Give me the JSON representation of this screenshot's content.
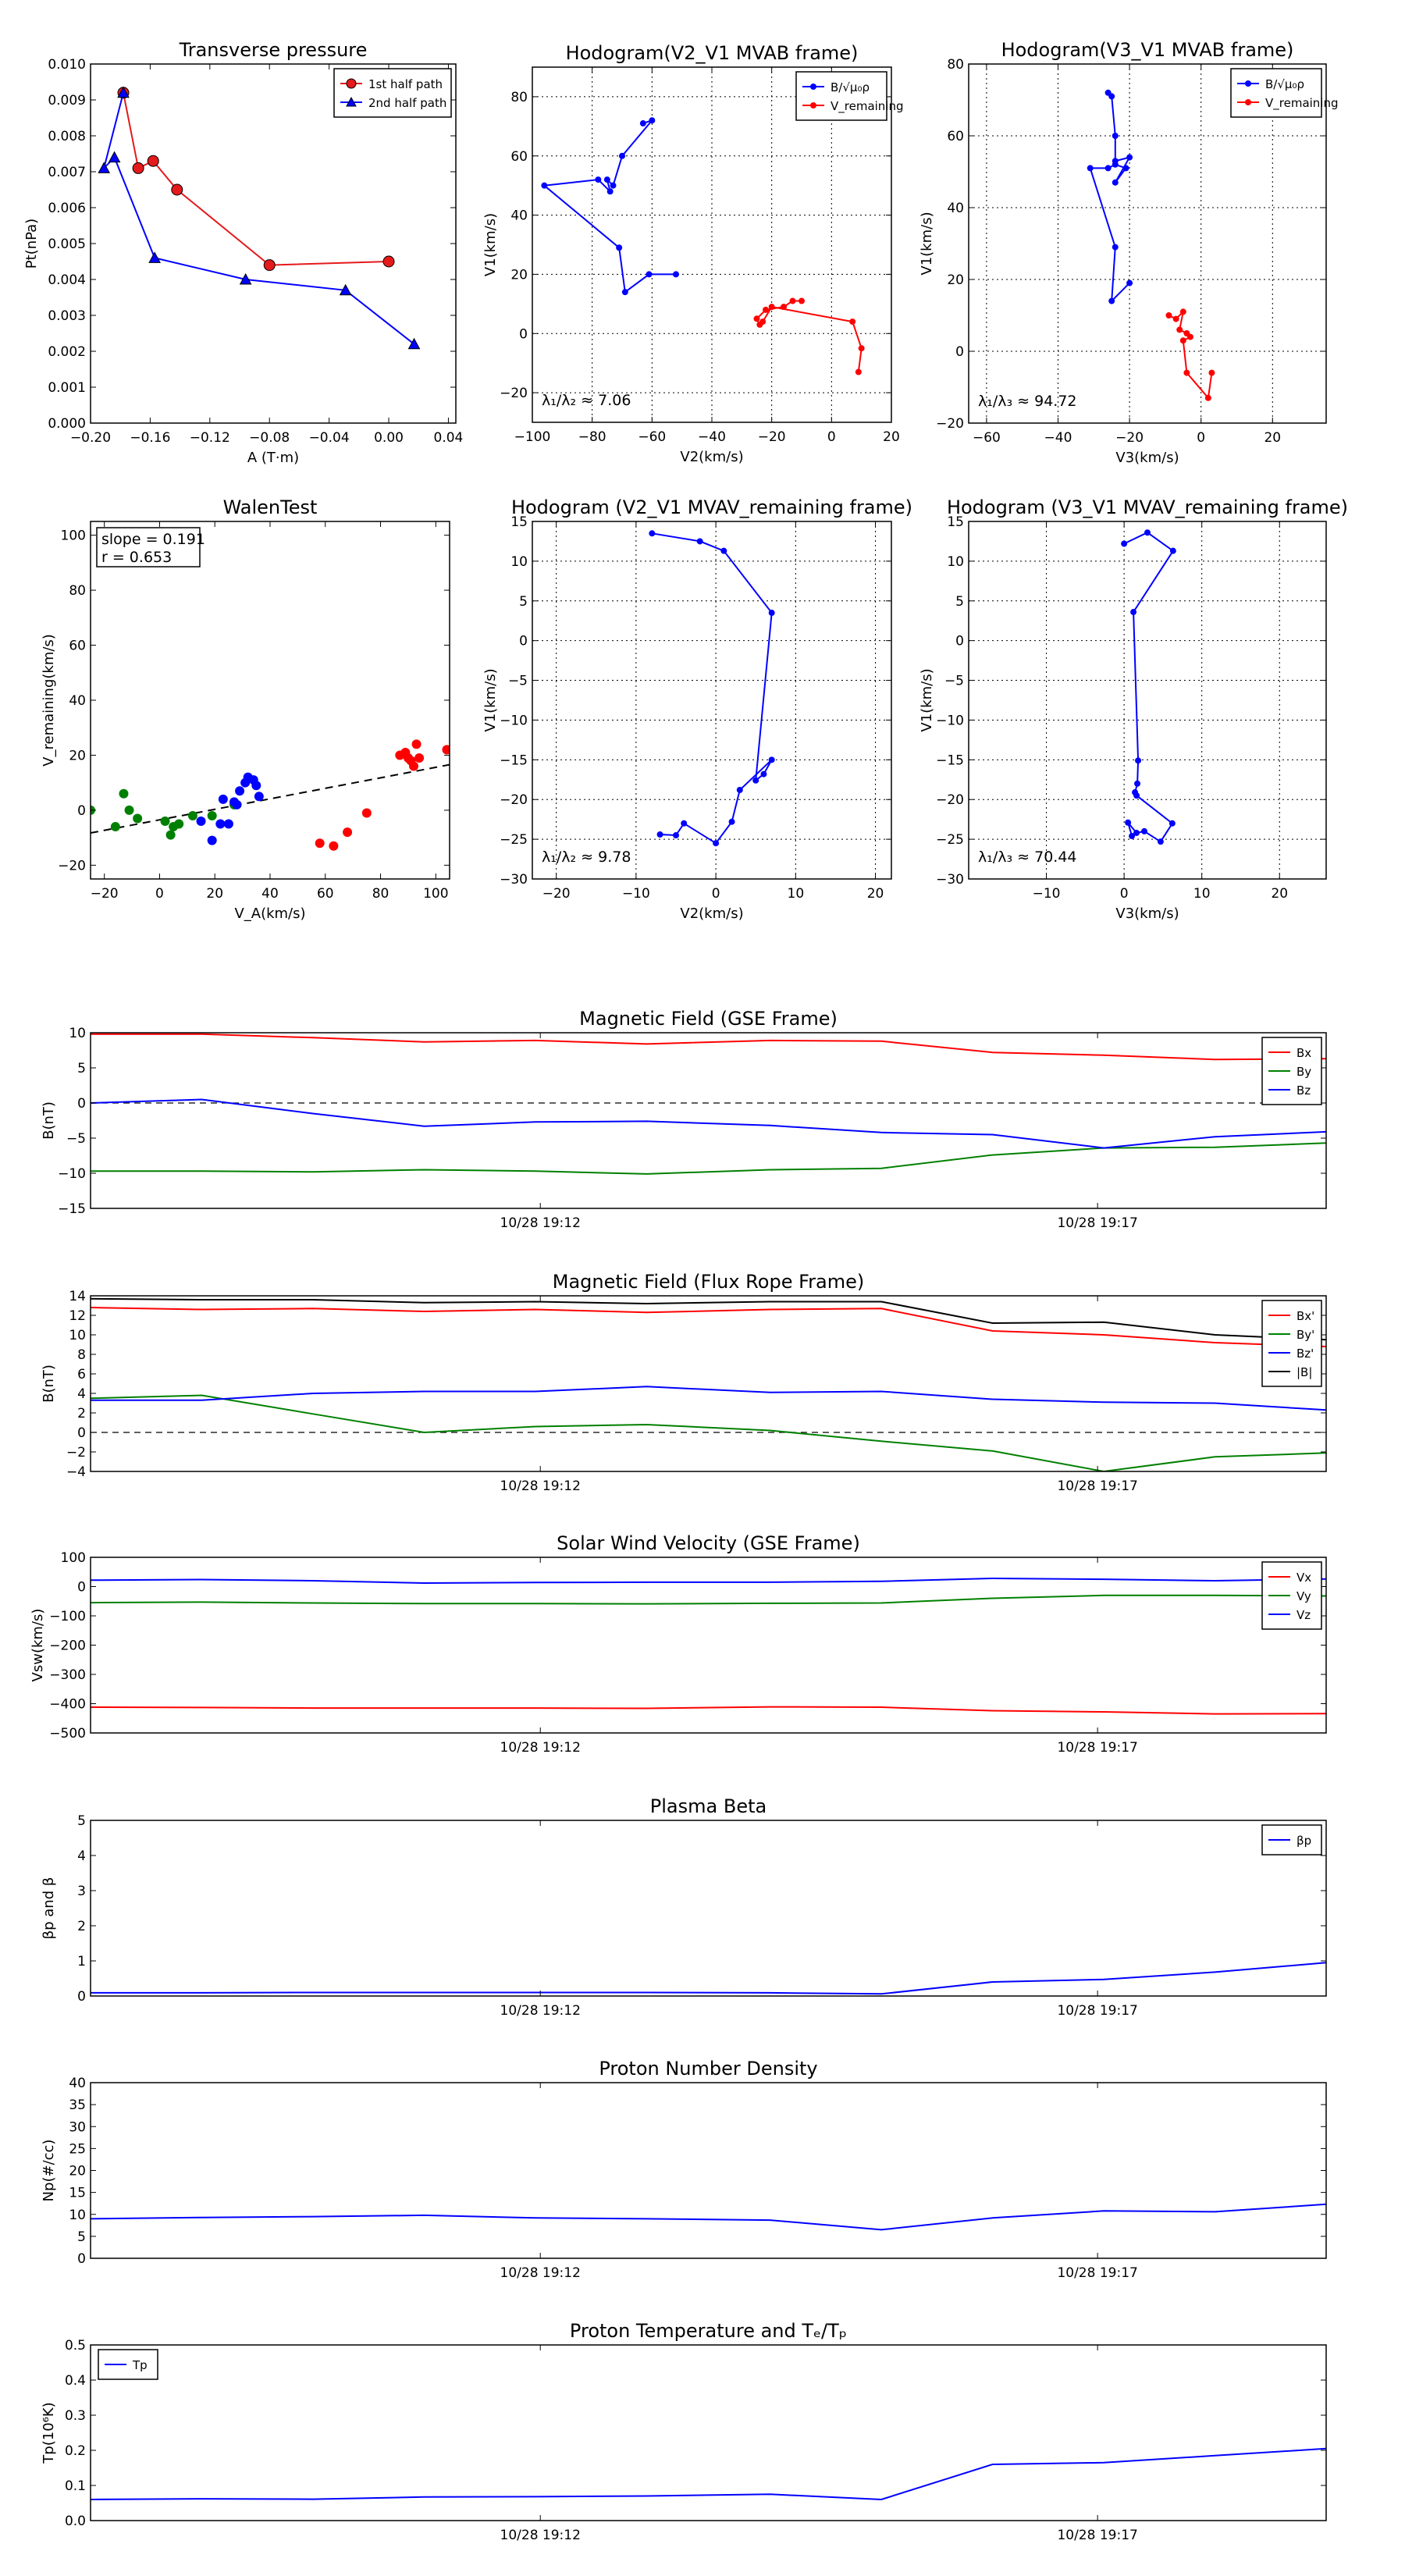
{
  "chart_data": [
    {
      "id": "tp",
      "type": "scatter",
      "title": "Transverse pressure",
      "xlabel": "A (T·m)",
      "ylabel": "Pt(nPa)",
      "xlim": [
        -0.2,
        0.045
      ],
      "ylim": [
        0,
        0.01
      ],
      "xticks": [
        -0.2,
        -0.16,
        -0.12,
        -0.08,
        -0.04,
        0.0,
        0.04
      ],
      "xticklabels": [
        "−0.20",
        "−0.16",
        "−0.12",
        "−0.08",
        "−0.04",
        "0.00",
        "0.04"
      ],
      "yticks": [
        0,
        0.001,
        0.002,
        0.003,
        0.004,
        0.005,
        0.006,
        0.007,
        0.008,
        0.009,
        0.01
      ],
      "yticklabels": [
        "0.000",
        "0.001",
        "0.002",
        "0.003",
        "0.004",
        "0.005",
        "0.006",
        "0.007",
        "0.008",
        "0.009",
        "0.010"
      ],
      "grid": false,
      "legend": "upper-right",
      "series": [
        {
          "name": "1st half path",
          "color": "#e41a1c",
          "marker": "circle",
          "x": [
            -0.178,
            -0.168,
            -0.158,
            -0.142,
            -0.08,
            0.0
          ],
          "y": [
            0.0092,
            0.0071,
            0.0073,
            0.0065,
            0.0044,
            0.0045
          ]
        },
        {
          "name": "2nd half path",
          "color": "#0000ff",
          "marker": "triangle",
          "x": [
            -0.178,
            -0.191,
            -0.184,
            -0.157,
            -0.096,
            -0.029,
            0.017
          ],
          "y": [
            0.0092,
            0.0071,
            0.0074,
            0.0046,
            0.004,
            0.0037,
            0.0022
          ]
        }
      ]
    },
    {
      "id": "h1",
      "type": "line",
      "title": "Hodogram(V2_V1 MVAB frame)",
      "xlabel": "V2(km/s)",
      "ylabel": "V1(km/s)",
      "xlim": [
        -100,
        20
      ],
      "ylim": [
        -30,
        90
      ],
      "xticks": [
        -100,
        -80,
        -60,
        -40,
        -20,
        0,
        20
      ],
      "yticks": [
        -20,
        0,
        20,
        40,
        60,
        80
      ],
      "grid": true,
      "legend": "upper-right",
      "annotation": "λ₁/λ₂ ≈ 7.06",
      "series": [
        {
          "name": "B/√μ₀ρ",
          "color": "#0000ff",
          "x": [
            -63,
            -60,
            -70,
            -73,
            -75,
            -74,
            -78,
            -96,
            -71,
            -69,
            -61,
            -52
          ],
          "y": [
            71,
            72,
            60,
            50,
            52,
            48,
            52,
            50,
            29,
            14,
            20,
            20
          ]
        },
        {
          "name": "V_remaining",
          "color": "#ff0000",
          "x": [
            -10,
            -13,
            -16,
            -22,
            -25,
            -24,
            -23,
            -20,
            7,
            10,
            9
          ],
          "y": [
            11,
            11,
            9,
            8,
            5,
            3,
            4,
            9,
            4,
            -5,
            -13
          ]
        }
      ]
    },
    {
      "id": "h2",
      "type": "line",
      "title": "Hodogram(V3_V1 MVAB frame)",
      "xlabel": "V3(km/s)",
      "ylabel": "V1(km/s)",
      "xlim": [
        -65,
        35
      ],
      "ylim": [
        -20,
        80
      ],
      "xticks": [
        -60,
        -40,
        -20,
        0,
        20
      ],
      "yticks": [
        -20,
        0,
        20,
        40,
        60,
        80
      ],
      "grid": true,
      "legend": "upper-right",
      "annotation": "λ₁/λ₃ ≈ 94.72",
      "series": [
        {
          "name": "B/√μ₀ρ",
          "color": "#0000ff",
          "x": [
            -26,
            -25,
            -24,
            -24,
            -20,
            -24,
            -21,
            -24,
            -26,
            -31,
            -24,
            -25,
            -20
          ],
          "y": [
            72,
            71,
            60,
            53,
            54,
            47,
            51,
            52,
            51,
            51,
            29,
            14,
            19
          ]
        },
        {
          "name": "V_remaining",
          "color": "#ff0000",
          "x": [
            -9,
            -7,
            -5,
            -6,
            -4,
            -3,
            -5,
            -4,
            2,
            3
          ],
          "y": [
            10,
            9,
            11,
            6,
            5,
            4,
            3,
            -6,
            -13,
            -6
          ]
        }
      ]
    },
    {
      "id": "walen",
      "type": "scatter",
      "title": "WalenTest",
      "xlabel": "V_A(km/s)",
      "ylabel": "V_remaining(km/s)",
      "xlim": [
        -25,
        105
      ],
      "ylim": [
        -25,
        105
      ],
      "xticks": [
        -20,
        0,
        20,
        40,
        60,
        80,
        100
      ],
      "yticks": [
        -20,
        0,
        20,
        40,
        60,
        80,
        100
      ],
      "grid": false,
      "fit": {
        "slope": 0.191,
        "intercept": -3.5,
        "r": 0.653
      },
      "annotation_lines": [
        "slope = 0.191",
        "r = 0.653"
      ],
      "series": [
        {
          "color": "#008000",
          "x": [
            -25,
            -16,
            -13,
            -11,
            -8,
            2,
            4,
            5,
            7,
            12,
            19,
            27
          ],
          "y": [
            0,
            -6,
            6,
            0,
            -3,
            -4,
            -9,
            -6,
            -5,
            -2,
            -2,
            2
          ]
        },
        {
          "color": "#0000ff",
          "x": [
            15,
            19,
            22,
            23,
            25,
            27,
            28,
            29,
            31,
            32,
            34,
            35,
            36
          ],
          "y": [
            -4,
            -11,
            -5,
            4,
            -5,
            3,
            2,
            7,
            10,
            12,
            11,
            9,
            5
          ]
        },
        {
          "color": "#ff0000",
          "x": [
            58,
            63,
            68,
            75,
            87,
            89,
            90,
            91,
            92,
            93,
            94,
            104
          ],
          "y": [
            -12,
            -13,
            -8,
            -1,
            20,
            21,
            19,
            18,
            16,
            24,
            19,
            22
          ]
        }
      ]
    },
    {
      "id": "h3",
      "type": "line",
      "title": "Hodogram (V2_V1 MVAV_remaining frame)",
      "xlabel": "V2(km/s)",
      "ylabel": "V1(km/s)",
      "xlim": [
        -23,
        22
      ],
      "ylim": [
        -30,
        15
      ],
      "xticks": [
        -20,
        -10,
        0,
        10,
        20
      ],
      "yticks": [
        -30,
        -25,
        -20,
        -15,
        -10,
        -5,
        0,
        5,
        10,
        15
      ],
      "grid": true,
      "annotation": "λ₁/λ₂ ≈ 9.78",
      "series": [
        {
          "color": "#0000ff",
          "x": [
            -8,
            -2,
            1,
            7,
            5,
            6,
            7,
            3,
            2,
            0,
            -4,
            -5,
            -7
          ],
          "y": [
            13.5,
            12.5,
            11.3,
            3.5,
            -17.6,
            -16.8,
            -15,
            -18.8,
            -22.8,
            -25.5,
            -23,
            -24.5,
            -24.4
          ]
        }
      ]
    },
    {
      "id": "h4",
      "type": "line",
      "title": "Hodogram (V3_V1 MVAV_remaining frame)",
      "xlabel": "V3(km/s)",
      "ylabel": "V1(km/s)",
      "xlim": [
        -20,
        26
      ],
      "ylim": [
        -30,
        15
      ],
      "xticks": [
        -10,
        0,
        10,
        20
      ],
      "yticks": [
        -30,
        -25,
        -20,
        -15,
        -10,
        -5,
        0,
        5,
        10,
        15
      ],
      "grid": true,
      "annotation": "λ₁/λ₃ ≈ 70.44",
      "series": [
        {
          "color": "#0000ff",
          "x": [
            0,
            3,
            6.3,
            1.2,
            1.8,
            1.7,
            1.4,
            1.6,
            6.2,
            4.7,
            2.6,
            1.6,
            0.5,
            1
          ],
          "y": [
            12.2,
            13.6,
            11.3,
            3.6,
            -15.1,
            -18,
            -19.1,
            -19.5,
            -23,
            -25.3,
            -24,
            -24.2,
            -22.9,
            -24.6
          ]
        }
      ]
    },
    {
      "id": "bgse",
      "type": "line",
      "title": "Magnetic Field (GSE Frame)",
      "ylabel": "B(nT)",
      "ylim": [
        -15,
        10
      ],
      "yticks": [
        -15,
        -10,
        -5,
        0,
        5,
        10
      ],
      "xticks": [
        0.364,
        0.815
      ],
      "xticklabels": [
        "10/28 19:12",
        "10/28 19:17"
      ],
      "grid": false,
      "zero_line": true,
      "legend": "upper-right",
      "series": [
        {
          "name": "Bx",
          "color": "#ff0000",
          "x": [
            0,
            0.09,
            0.18,
            0.27,
            0.36,
            0.45,
            0.55,
            0.64,
            0.73,
            0.82,
            0.91,
            1.0
          ],
          "y": [
            9.8,
            9.8,
            9.3,
            8.7,
            8.9,
            8.4,
            8.9,
            8.8,
            7.2,
            6.8,
            6.2,
            6.3
          ]
        },
        {
          "name": "By",
          "color": "#008000",
          "x": [
            0,
            0.09,
            0.18,
            0.27,
            0.36,
            0.45,
            0.55,
            0.64,
            0.73,
            0.82,
            0.91,
            1.0
          ],
          "y": [
            -9.7,
            -9.7,
            -9.8,
            -9.5,
            -9.7,
            -10.1,
            -9.5,
            -9.3,
            -7.4,
            -6.4,
            -6.3,
            -5.7
          ]
        },
        {
          "name": "Bz",
          "color": "#0000ff",
          "x": [
            0,
            0.09,
            0.18,
            0.27,
            0.36,
            0.45,
            0.55,
            0.64,
            0.73,
            0.82,
            0.91,
            1.0
          ],
          "y": [
            0,
            0.5,
            -1.5,
            -3.3,
            -2.7,
            -2.6,
            -3.2,
            -4.2,
            -4.5,
            -6.4,
            -4.8,
            -4.1
          ]
        }
      ]
    },
    {
      "id": "bfr",
      "type": "line",
      "title": "Magnetic Field (Flux Rope Frame)",
      "ylabel": "B(nT)",
      "ylim": [
        -4,
        14
      ],
      "yticks": [
        -4,
        -2,
        0,
        2,
        4,
        6,
        8,
        10,
        12,
        14
      ],
      "xticks": [
        0.364,
        0.815
      ],
      "xticklabels": [
        "10/28 19:12",
        "10/28 19:17"
      ],
      "grid": false,
      "zero_line": true,
      "legend": "upper-right",
      "series": [
        {
          "name": "Bx'",
          "color": "#ff0000",
          "x": [
            0,
            0.09,
            0.18,
            0.27,
            0.36,
            0.45,
            0.55,
            0.64,
            0.73,
            0.82,
            0.91,
            1.0
          ],
          "y": [
            12.8,
            12.6,
            12.7,
            12.4,
            12.6,
            12.3,
            12.6,
            12.7,
            10.4,
            10.0,
            9.2,
            8.8
          ]
        },
        {
          "name": "By'",
          "color": "#008000",
          "x": [
            0,
            0.09,
            0.18,
            0.27,
            0.36,
            0.45,
            0.55,
            0.64,
            0.73,
            0.82,
            0.91,
            1.0
          ],
          "y": [
            3.5,
            3.8,
            1.9,
            0.0,
            0.6,
            0.8,
            0.2,
            -0.9,
            -1.9,
            -4.0,
            -2.5,
            -2.1
          ]
        },
        {
          "name": "Bz'",
          "color": "#0000ff",
          "x": [
            0,
            0.09,
            0.18,
            0.27,
            0.36,
            0.45,
            0.55,
            0.64,
            0.73,
            0.82,
            0.91,
            1.0
          ],
          "y": [
            3.3,
            3.3,
            4.0,
            4.2,
            4.2,
            4.7,
            4.1,
            4.2,
            3.4,
            3.1,
            3.0,
            2.3
          ]
        },
        {
          "name": "|B|",
          "color": "#000000",
          "x": [
            0,
            0.09,
            0.18,
            0.27,
            0.36,
            0.45,
            0.55,
            0.64,
            0.73,
            0.82,
            0.91,
            1.0
          ],
          "y": [
            13.7,
            13.6,
            13.6,
            13.3,
            13.4,
            13.2,
            13.4,
            13.4,
            11.2,
            11.3,
            10.0,
            9.5
          ]
        }
      ]
    },
    {
      "id": "vsw",
      "type": "line",
      "title": "Solar Wind Velocity (GSE Frame)",
      "ylabel": "Vsw(km/s)",
      "ylim": [
        -500,
        100
      ],
      "yticks": [
        -500,
        -400,
        -300,
        -200,
        -100,
        0,
        100
      ],
      "yticklabels": [
        "−500",
        "−400",
        "−300",
        "−200",
        "−100",
        "0",
        "100"
      ],
      "xticks": [
        0.364,
        0.815
      ],
      "xticklabels": [
        "10/28 19:12",
        "10/28 19:17"
      ],
      "grid": false,
      "legend": "upper-right",
      "series": [
        {
          "name": "Vx",
          "color": "#ff0000",
          "x": [
            0,
            0.09,
            0.18,
            0.27,
            0.36,
            0.45,
            0.55,
            0.64,
            0.73,
            0.82,
            0.91,
            1.0
          ],
          "y": [
            -412,
            -413,
            -415,
            -415,
            -415,
            -416,
            -411,
            -412,
            -424,
            -428,
            -435,
            -434
          ]
        },
        {
          "name": "Vy",
          "color": "#008000",
          "x": [
            0,
            0.09,
            0.18,
            0.27,
            0.36,
            0.45,
            0.55,
            0.64,
            0.73,
            0.82,
            0.91,
            1.0
          ],
          "y": [
            -55,
            -53,
            -56,
            -58,
            -58,
            -59,
            -57,
            -56,
            -40,
            -30,
            -30,
            -32
          ]
        },
        {
          "name": "Vz",
          "color": "#0000ff",
          "x": [
            0,
            0.09,
            0.18,
            0.27,
            0.36,
            0.45,
            0.55,
            0.64,
            0.73,
            0.82,
            0.91,
            1.0
          ],
          "y": [
            22,
            24,
            20,
            12,
            14,
            15,
            15,
            18,
            28,
            25,
            20,
            26
          ]
        }
      ]
    },
    {
      "id": "beta",
      "type": "line",
      "title": "Plasma Beta",
      "ylabel": "βp and β",
      "ylim": [
        0,
        5
      ],
      "yticks": [
        0,
        1,
        2,
        3,
        4,
        5
      ],
      "xticks": [
        0.364,
        0.815
      ],
      "xticklabels": [
        "10/28 19:12",
        "10/28 19:17"
      ],
      "grid": false,
      "legend": "upper-right",
      "series": [
        {
          "name": "βp",
          "color": "#0000ff",
          "x": [
            0,
            0.09,
            0.18,
            0.27,
            0.36,
            0.45,
            0.55,
            0.64,
            0.73,
            0.82,
            0.91,
            1.0
          ],
          "y": [
            0.09,
            0.09,
            0.1,
            0.1,
            0.1,
            0.1,
            0.09,
            0.06,
            0.4,
            0.47,
            0.68,
            0.95
          ]
        }
      ]
    },
    {
      "id": "np",
      "type": "line",
      "title": "Proton Number Density",
      "ylabel": "Np(#/cc)",
      "ylim": [
        0,
        40
      ],
      "yticks": [
        0,
        5,
        10,
        15,
        20,
        25,
        30,
        35,
        40
      ],
      "xticks": [
        0.364,
        0.815
      ],
      "xticklabels": [
        "10/28 19:12",
        "10/28 19:17"
      ],
      "grid": false,
      "series": [
        {
          "color": "#0000ff",
          "x": [
            0,
            0.09,
            0.18,
            0.27,
            0.36,
            0.45,
            0.55,
            0.64,
            0.73,
            0.82,
            0.91,
            1.0
          ],
          "y": [
            9,
            9.3,
            9.5,
            9.8,
            9.2,
            9.0,
            8.7,
            6.5,
            9.2,
            10.8,
            10.6,
            12.3
          ]
        }
      ]
    },
    {
      "id": "tpr",
      "type": "line",
      "title": "Proton Temperature and Tₑ/Tₚ",
      "ylabel": "Tp(10⁶K)",
      "ylim": [
        0,
        0.5
      ],
      "yticks": [
        0,
        0.1,
        0.2,
        0.3,
        0.4,
        0.5
      ],
      "yticklabels": [
        "0.0",
        "0.1",
        "0.2",
        "0.3",
        "0.4",
        "0.5"
      ],
      "xticks": [
        0.364,
        0.815
      ],
      "xticklabels": [
        "10/28 19:12",
        "10/28 19:17"
      ],
      "grid": false,
      "legend": "upper-left",
      "series": [
        {
          "name": "Tp",
          "color": "#0000ff",
          "x": [
            0,
            0.09,
            0.18,
            0.27,
            0.36,
            0.45,
            0.55,
            0.64,
            0.73,
            0.82,
            0.91,
            1.0
          ],
          "y": [
            0.06,
            0.062,
            0.061,
            0.067,
            0.068,
            0.07,
            0.075,
            0.06,
            0.16,
            0.165,
            0.185,
            0.205
          ]
        }
      ]
    }
  ]
}
